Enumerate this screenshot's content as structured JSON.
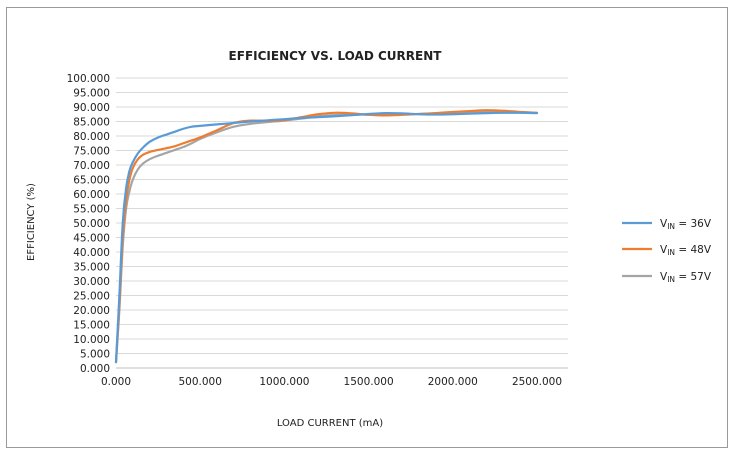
{
  "chart_data": {
    "type": "line",
    "title": "EFFICIENCY VS. LOAD CURRENT",
    "xlabel": "LOAD CURRENT (mA)",
    "ylabel": "EFFICIENCY (%)",
    "xlim": [
      0,
      2500
    ],
    "ylim": [
      0,
      100
    ],
    "x_ticks": [
      0,
      500,
      1000,
      1500,
      2000,
      2500
    ],
    "x_tick_labels": [
      "0.000",
      "500.000",
      "1000.000",
      "1500.000",
      "2000.000",
      "2500.000"
    ],
    "y_ticks": [
      0,
      5,
      10,
      15,
      20,
      25,
      30,
      35,
      40,
      45,
      50,
      55,
      60,
      65,
      70,
      75,
      80,
      85,
      90,
      95,
      100
    ],
    "y_tick_labels": [
      "0.000",
      "5.000",
      "10.000",
      "15.000",
      "20.000",
      "25.000",
      "30.000",
      "35.000",
      "40.000",
      "45.000",
      "50.000",
      "55.000",
      "60.000",
      "65.000",
      "70.000",
      "75.000",
      "80.000",
      "85.000",
      "90.000",
      "95.000",
      "100.000"
    ],
    "grid": "horizontal",
    "legend_position": "right",
    "series": [
      {
        "name": "VIN = 36V",
        "label_main": "V",
        "label_sub": "IN",
        "label_rest": " = 36V",
        "color": "#5b9bd5",
        "x": [
          0,
          20,
          40,
          60,
          80,
          100,
          130,
          160,
          200,
          250,
          300,
          350,
          400,
          450,
          500,
          600,
          700,
          800,
          900,
          1000,
          1100,
          1200,
          1300,
          1400,
          1500,
          1600,
          1700,
          1800,
          1900,
          2000,
          2100,
          2200,
          2300,
          2400,
          2500
        ],
        "values": [
          2,
          25,
          50,
          62,
          68,
          71,
          74,
          76,
          78,
          79.5,
          80.5,
          81.5,
          82.5,
          83.2,
          83.5,
          84,
          84.5,
          85,
          85.4,
          85.8,
          86.2,
          86.5,
          86.8,
          87.2,
          87.6,
          87.9,
          87.8,
          87.5,
          87.4,
          87.5,
          87.7,
          87.9,
          88,
          88,
          87.9
        ]
      },
      {
        "name": "VIN = 48V",
        "label_main": "V",
        "label_sub": "IN",
        "label_rest": " = 48V",
        "color": "#ed7d31",
        "x": [
          0,
          20,
          40,
          60,
          80,
          100,
          130,
          160,
          200,
          250,
          300,
          350,
          400,
          450,
          500,
          600,
          700,
          800,
          900,
          1000,
          1100,
          1200,
          1300,
          1400,
          1500,
          1600,
          1700,
          1800,
          1900,
          2000,
          2100,
          2200,
          2300,
          2400,
          2500
        ],
        "values": [
          2,
          22,
          45,
          58,
          65,
          69,
          72,
          73.5,
          74.5,
          75.2,
          75.8,
          76.5,
          77.5,
          78.5,
          79.5,
          82,
          84.5,
          85.3,
          85.2,
          85.5,
          86.5,
          87.5,
          88,
          87.8,
          87.3,
          87.1,
          87.3,
          87.6,
          87.9,
          88.3,
          88.6,
          88.9,
          88.7,
          88.3,
          88
        ]
      },
      {
        "name": "VIN = 57V",
        "label_main": "V",
        "label_sub": "IN",
        "label_rest": " = 57V",
        "color": "#a5a5a5",
        "x": [
          0,
          20,
          40,
          60,
          80,
          100,
          130,
          160,
          200,
          250,
          300,
          350,
          400,
          450,
          500,
          600,
          700,
          800,
          900,
          1000,
          1100,
          1200,
          1300,
          1400,
          1500,
          1600,
          1700,
          1800,
          1900,
          2000,
          2100,
          2200,
          2300,
          2400,
          2500
        ],
        "values": [
          2,
          20,
          42,
          55,
          61,
          65,
          68.5,
          70.5,
          72,
          73.2,
          74.2,
          75.2,
          76.2,
          77.5,
          79,
          81.3,
          83.2,
          84.2,
          84.8,
          85.3,
          86,
          86.8,
          87.2,
          87.4,
          87.4,
          87.4,
          87.5,
          87.6,
          87.8,
          88,
          88.2,
          88.4,
          88.3,
          88.1,
          88
        ]
      }
    ]
  }
}
